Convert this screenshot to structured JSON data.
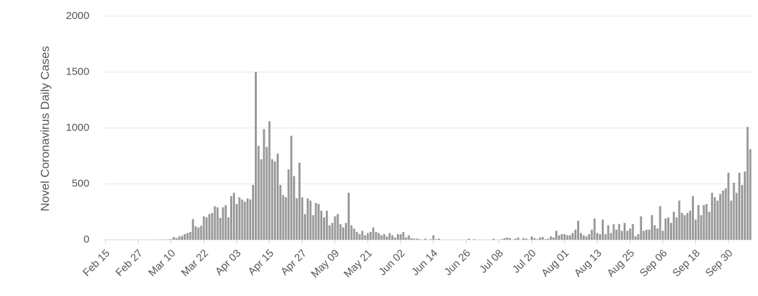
{
  "chart_data": {
    "type": "bar",
    "y_label": "Novel Coronavirus Daily Cases",
    "color": "#999999",
    "grid": true,
    "ylim": [
      0,
      2000
    ],
    "yticks": [
      0,
      500,
      1000,
      1500,
      2000
    ],
    "categories": [
      "Feb 15",
      null,
      null,
      null,
      null,
      null,
      null,
      null,
      null,
      null,
      null,
      null,
      "Feb 27",
      null,
      null,
      null,
      null,
      null,
      null,
      null,
      null,
      null,
      null,
      null,
      "Mar 10",
      null,
      null,
      null,
      null,
      null,
      null,
      null,
      null,
      null,
      null,
      null,
      "Mar 22",
      null,
      null,
      null,
      null,
      null,
      null,
      null,
      null,
      null,
      null,
      null,
      "Apr 03",
      null,
      null,
      null,
      null,
      null,
      null,
      null,
      null,
      null,
      null,
      null,
      "Apr 15",
      null,
      null,
      null,
      null,
      null,
      null,
      null,
      null,
      null,
      null,
      null,
      "Apr 27",
      null,
      null,
      null,
      null,
      null,
      null,
      null,
      null,
      null,
      null,
      null,
      "May 09",
      null,
      null,
      null,
      null,
      null,
      null,
      null,
      null,
      null,
      null,
      null,
      "May 21",
      null,
      null,
      null,
      null,
      null,
      null,
      null,
      null,
      null,
      null,
      null,
      "Jun 02",
      null,
      null,
      null,
      null,
      null,
      null,
      null,
      null,
      null,
      null,
      null,
      "Jun 14",
      null,
      null,
      null,
      null,
      null,
      null,
      null,
      null,
      null,
      null,
      null,
      "Jun 26",
      null,
      null,
      null,
      null,
      null,
      null,
      null,
      null,
      null,
      null,
      null,
      "Jul 08",
      null,
      null,
      null,
      null,
      null,
      null,
      null,
      null,
      null,
      null,
      null,
      "Jul 20",
      null,
      null,
      null,
      null,
      null,
      null,
      null,
      null,
      null,
      null,
      null,
      "Aug 01",
      null,
      null,
      null,
      null,
      null,
      null,
      null,
      null,
      null,
      null,
      null,
      "Aug 13",
      null,
      null,
      null,
      null,
      null,
      null,
      null,
      null,
      null,
      null,
      null,
      "Aug 25",
      null,
      null,
      null,
      null,
      null,
      null,
      null,
      null,
      null,
      null,
      null,
      "Sep 06",
      null,
      null,
      null,
      null,
      null,
      null,
      null,
      null,
      null,
      null,
      null,
      "Sep 18",
      null,
      null,
      null,
      null,
      null,
      null,
      null,
      null,
      null,
      null,
      null,
      "Sep 30",
      null,
      null,
      null,
      null,
      null,
      null,
      null,
      null
    ],
    "values": [
      0,
      0,
      0,
      0,
      0,
      0,
      0,
      0,
      0,
      0,
      0,
      0,
      0,
      0,
      0,
      0,
      0,
      0,
      0,
      0,
      1,
      1,
      2,
      3,
      5,
      25,
      15,
      30,
      35,
      50,
      60,
      70,
      185,
      120,
      110,
      125,
      210,
      200,
      230,
      240,
      300,
      290,
      195,
      290,
      310,
      200,
      390,
      420,
      320,
      380,
      360,
      340,
      370,
      360,
      490,
      1500,
      840,
      720,
      990,
      830,
      1060,
      720,
      700,
      770,
      490,
      400,
      380,
      630,
      930,
      570,
      370,
      690,
      380,
      230,
      370,
      350,
      220,
      330,
      320,
      260,
      200,
      260,
      130,
      150,
      210,
      230,
      140,
      110,
      150,
      420,
      130,
      100,
      70,
      50,
      80,
      40,
      60,
      70,
      110,
      70,
      60,
      40,
      50,
      30,
      60,
      40,
      20,
      50,
      50,
      70,
      20,
      40,
      15,
      10,
      10,
      5,
      0,
      10,
      0,
      5,
      40,
      5,
      10,
      0,
      0,
      0,
      0,
      0,
      0,
      0,
      0,
      0,
      0,
      10,
      0,
      5,
      0,
      0,
      0,
      0,
      0,
      0,
      10,
      0,
      0,
      5,
      15,
      20,
      15,
      0,
      10,
      20,
      0,
      15,
      10,
      0,
      30,
      15,
      5,
      20,
      25,
      5,
      10,
      30,
      20,
      80,
      40,
      50,
      50,
      40,
      40,
      60,
      90,
      170,
      60,
      40,
      30,
      50,
      90,
      190,
      60,
      50,
      180,
      50,
      130,
      60,
      140,
      90,
      140,
      80,
      150,
      80,
      100,
      140,
      30,
      50,
      210,
      80,
      90,
      90,
      220,
      130,
      100,
      300,
      80,
      190,
      200,
      150,
      250,
      200,
      350,
      240,
      220,
      240,
      260,
      390,
      180,
      310,
      220,
      310,
      320,
      250,
      420,
      380,
      350,
      410,
      440,
      460,
      600,
      350,
      510,
      420,
      600,
      490,
      610,
      1010,
      810
    ]
  }
}
